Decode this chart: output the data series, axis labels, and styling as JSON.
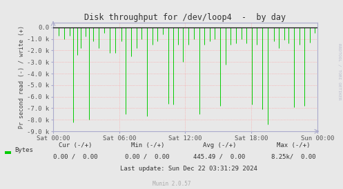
{
  "title": "Disk throughput for /dev/loop4  -  by day",
  "ylabel": "Pr second read (-) / write (+)",
  "ylim": [
    -9000,
    400
  ],
  "yticks": [
    0.0,
    -1000,
    -2000,
    -3000,
    -4000,
    -5000,
    -6000,
    -7000,
    -8000,
    -9000
  ],
  "ytick_labels": [
    "0.0",
    "-1.0 k",
    "-2.0 k",
    "-3.0 k",
    "-4.0 k",
    "-5.0 k",
    "-6.0 k",
    "-7.0 k",
    "-8.0 k",
    "-9.0 k"
  ],
  "xtick_labels": [
    "Sat 00:00",
    "Sat 06:00",
    "Sat 12:00",
    "Sat 18:00",
    "Sun 00:00"
  ],
  "bg_color": "#e8e8e8",
  "plot_bg_color": "#e8e8e8",
  "grid_color": "#ff9999",
  "line_color": "#00cc00",
  "axis_color": "#aaaacc",
  "legend_label": "Bytes",
  "legend_color": "#00cc00",
  "cur_text": "Cur (-/+)",
  "cur_val": "0.00 /  0.00",
  "min_text": "Min (-/+)",
  "min_val": "0.00 /  0.00",
  "avg_text": "Avg (-/+)",
  "avg_val": "445.49 /  0.00",
  "max_text": "Max (-/+)",
  "max_val": "8.25k/  0.00",
  "last_update": "Last update: Sun Dec 22 03:31:29 2024",
  "munin_text": "Munin 2.0.57",
  "rrdtool_text": "RRDTOOL / TOBI OETIKER",
  "spike_x": [
    0.022,
    0.042,
    0.062,
    0.075,
    0.092,
    0.105,
    0.122,
    0.135,
    0.152,
    0.172,
    0.192,
    0.215,
    0.235,
    0.258,
    0.275,
    0.295,
    0.315,
    0.335,
    0.355,
    0.375,
    0.395,
    0.415,
    0.435,
    0.455,
    0.472,
    0.492,
    0.512,
    0.532,
    0.555,
    0.572,
    0.592,
    0.612,
    0.632,
    0.652,
    0.672,
    0.692,
    0.712,
    0.732,
    0.752,
    0.772,
    0.792,
    0.812,
    0.835,
    0.855,
    0.875,
    0.892,
    0.912,
    0.932,
    0.952,
    0.972,
    0.99
  ],
  "spike_y": [
    -700,
    -1050,
    -750,
    -8200,
    -2400,
    -1800,
    -800,
    -8000,
    -1200,
    -1800,
    -500,
    -2200,
    -2200,
    -1200,
    -7500,
    -2500,
    -1800,
    -1000,
    -7700,
    -1500,
    -1200,
    -600,
    -6600,
    -6700,
    -1500,
    -3000,
    -1500,
    -1000,
    -7500,
    -1500,
    -1200,
    -1000,
    -6800,
    -3200,
    -1500,
    -1400,
    -1000,
    -1400,
    -6700,
    -1500,
    -7100,
    -8400,
    -1200,
    -1800,
    -1100,
    -1400,
    -6900,
    -1500,
    -6800,
    -1300,
    -500
  ]
}
